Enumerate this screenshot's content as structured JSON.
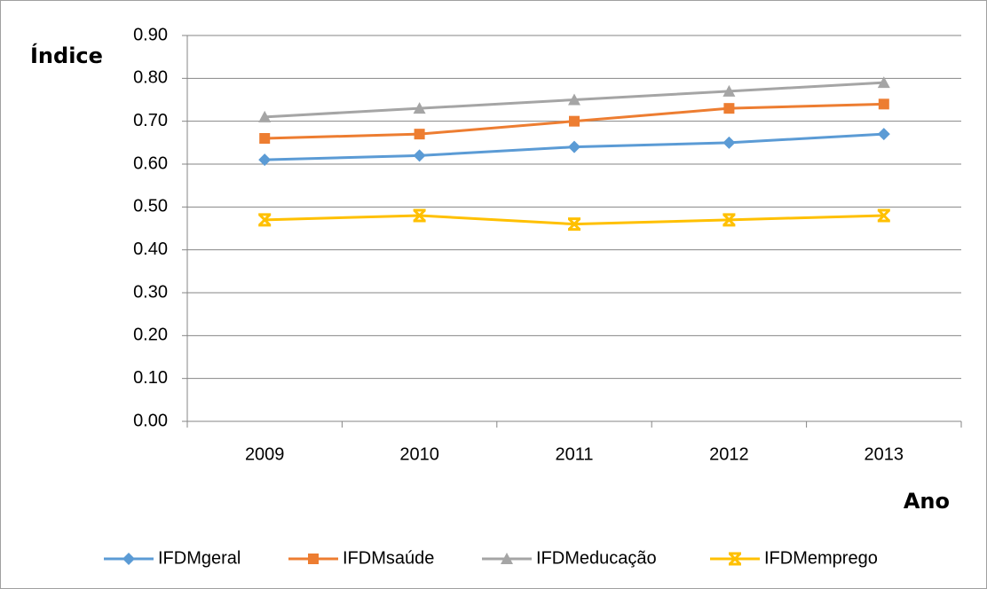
{
  "chart_data": {
    "type": "line",
    "y_label": "Índice",
    "x_label": "Ano",
    "categories": [
      "2009",
      "2010",
      "2011",
      "2012",
      "2013"
    ],
    "series": [
      {
        "name": "IFDMgeral",
        "color": "#5b9bd5",
        "marker": "diamond",
        "values": [
          0.61,
          0.62,
          0.64,
          0.65,
          0.67
        ]
      },
      {
        "name": "IFDMsaúde",
        "color": "#ed7d31",
        "marker": "square",
        "values": [
          0.66,
          0.67,
          0.7,
          0.73,
          0.74
        ]
      },
      {
        "name": "IFDMeducação",
        "color": "#a5a5a5",
        "marker": "triangle",
        "values": [
          0.71,
          0.73,
          0.75,
          0.77,
          0.79
        ]
      },
      {
        "name": "IFDMemprego",
        "color": "#ffc000",
        "marker": "star",
        "values": [
          0.47,
          0.48,
          0.46,
          0.47,
          0.48
        ]
      }
    ],
    "ylim": [
      0,
      0.9
    ],
    "yticks": [
      {
        "value": 0,
        "label": "0.00"
      },
      {
        "value": 0.1,
        "label": "0.10"
      },
      {
        "value": 0.2,
        "label": "0.20"
      },
      {
        "value": 0.3,
        "label": "0.30"
      },
      {
        "value": 0.4,
        "label": "0.40"
      },
      {
        "value": 0.5,
        "label": "0.50"
      },
      {
        "value": 0.6,
        "label": "0.60"
      },
      {
        "value": 0.7,
        "label": "0.70"
      },
      {
        "value": 0.8,
        "label": "0.80"
      },
      {
        "value": 0.9,
        "label": "0.90"
      }
    ],
    "grid": true,
    "legend": "bottom"
  }
}
